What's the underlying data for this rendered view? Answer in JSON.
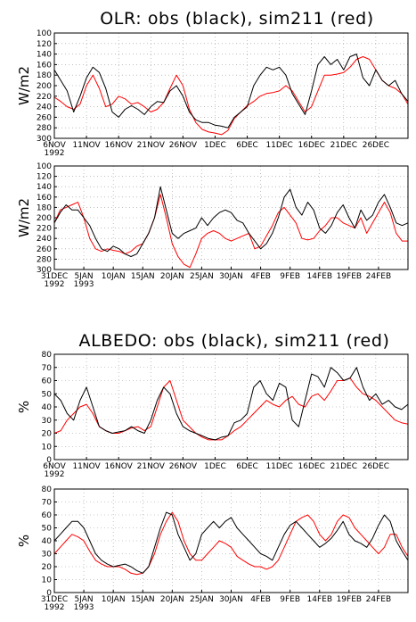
{
  "titles": {
    "olr": "OLR: obs (black), sim211 (red)",
    "albedo": "ALBEDO: obs (black), sim211 (red)"
  },
  "colors": {
    "obs": "#000000",
    "sim": "#ff0000"
  },
  "chart_data": [
    {
      "type": "line",
      "group": "olr",
      "ylabel": "W/m2",
      "yticks": [
        "100",
        "120",
        "140",
        "160",
        "180",
        "200",
        "220",
        "240",
        "260",
        "280",
        "300"
      ],
      "ylim": [
        300,
        100
      ],
      "y_inverted": true,
      "xlim": [
        0,
        55
      ],
      "xticks": [
        {
          "pos": 0,
          "label": "6NOV",
          "sub": "1992"
        },
        {
          "pos": 5,
          "label": "11NOV"
        },
        {
          "pos": 10,
          "label": "16NOV"
        },
        {
          "pos": 15,
          "label": "21NOV"
        },
        {
          "pos": 20,
          "label": "26NOV"
        },
        {
          "pos": 25,
          "label": "1DEC"
        },
        {
          "pos": 30,
          "label": "6DEC"
        },
        {
          "pos": 35,
          "label": "11DEC"
        },
        {
          "pos": 40,
          "label": "16DEC"
        },
        {
          "pos": 45,
          "label": "21DEC"
        },
        {
          "pos": 50,
          "label": "26DEC"
        }
      ],
      "series": [
        {
          "role": "obs",
          "values": [
            170,
            190,
            210,
            250,
            220,
            185,
            165,
            175,
            205,
            250,
            260,
            245,
            238,
            245,
            255,
            240,
            230,
            232,
            210,
            200,
            220,
            250,
            265,
            270,
            270,
            275,
            277,
            280,
            260,
            250,
            240,
            200,
            180,
            165,
            170,
            165,
            180,
            215,
            235,
            255,
            210,
            160,
            145,
            160,
            150,
            170,
            145,
            140,
            185,
            200,
            170,
            190,
            200,
            190,
            215,
            230
          ]
        },
        {
          "role": "sim",
          "values": [
            222,
            230,
            240,
            245,
            235,
            200,
            180,
            205,
            240,
            235,
            220,
            225,
            235,
            232,
            240,
            250,
            245,
            232,
            205,
            180,
            200,
            245,
            270,
            283,
            288,
            290,
            293,
            285,
            262,
            250,
            238,
            230,
            220,
            215,
            213,
            210,
            200,
            210,
            230,
            250,
            240,
            210,
            180,
            180,
            178,
            175,
            165,
            150,
            145,
            150,
            170,
            190,
            200,
            205,
            215,
            235
          ]
        }
      ]
    },
    {
      "type": "line",
      "group": "olr",
      "ylabel": "W/m2",
      "yticks": [
        "100",
        "120",
        "140",
        "160",
        "180",
        "200",
        "220",
        "240",
        "260",
        "280",
        "300"
      ],
      "ylim": [
        300,
        100
      ],
      "y_inverted": true,
      "xlim": [
        0,
        60
      ],
      "xticks": [
        {
          "pos": 0,
          "label": "31DEC",
          "sub": "1992"
        },
        {
          "pos": 5,
          "label": "5JAN",
          "sub": "1993"
        },
        {
          "pos": 10,
          "label": "10JAN"
        },
        {
          "pos": 15,
          "label": "15JAN"
        },
        {
          "pos": 20,
          "label": "20JAN"
        },
        {
          "pos": 25,
          "label": "25JAN"
        },
        {
          "pos": 30,
          "label": "30JAN"
        },
        {
          "pos": 35,
          "label": "4FEB"
        },
        {
          "pos": 40,
          "label": "9FEB"
        },
        {
          "pos": 45,
          "label": "14FEB"
        },
        {
          "pos": 50,
          "label": "19FEB"
        },
        {
          "pos": 55,
          "label": "24FEB"
        }
      ],
      "series": [
        {
          "role": "obs",
          "values": [
            210,
            190,
            175,
            185,
            185,
            200,
            215,
            240,
            260,
            265,
            255,
            260,
            270,
            275,
            270,
            250,
            230,
            200,
            140,
            185,
            230,
            240,
            230,
            225,
            220,
            200,
            215,
            200,
            190,
            185,
            190,
            205,
            210,
            230,
            245,
            260,
            250,
            230,
            200,
            160,
            145,
            180,
            195,
            170,
            185,
            220,
            230,
            215,
            190,
            175,
            200,
            220,
            185,
            205,
            195,
            170,
            155,
            180,
            210,
            215,
            210
          ]
        },
        {
          "role": "sim",
          "values": [
            210,
            185,
            180,
            175,
            170,
            200,
            240,
            260,
            265,
            260,
            263,
            265,
            270,
            265,
            255,
            250,
            230,
            200,
            155,
            200,
            250,
            275,
            290,
            296,
            270,
            240,
            230,
            225,
            230,
            240,
            245,
            240,
            235,
            230,
            260,
            255,
            235,
            215,
            190,
            180,
            195,
            210,
            240,
            243,
            240,
            225,
            215,
            200,
            200,
            210,
            215,
            220,
            200,
            230,
            210,
            190,
            170,
            190,
            230,
            245,
            245
          ]
        }
      ]
    },
    {
      "type": "line",
      "group": "albedo",
      "ylabel": "%",
      "yticks": [
        "0",
        "10",
        "20",
        "30",
        "40",
        "50",
        "60",
        "70",
        "80"
      ],
      "ylim": [
        0,
        80
      ],
      "xlim": [
        0,
        55
      ],
      "xticks": [
        {
          "pos": 0,
          "label": "6NOV",
          "sub": "1992"
        },
        {
          "pos": 5,
          "label": "11NOV"
        },
        {
          "pos": 10,
          "label": "16NOV"
        },
        {
          "pos": 15,
          "label": "21NOV"
        },
        {
          "pos": 20,
          "label": "26NOV"
        },
        {
          "pos": 25,
          "label": "1DEC"
        },
        {
          "pos": 30,
          "label": "6DEC"
        },
        {
          "pos": 35,
          "label": "11DEC"
        },
        {
          "pos": 40,
          "label": "16DEC"
        },
        {
          "pos": 45,
          "label": "21DEC"
        },
        {
          "pos": 50,
          "label": "26DEC"
        }
      ],
      "series": [
        {
          "role": "obs",
          "values": [
            50,
            45,
            35,
            30,
            45,
            55,
            40,
            25,
            22,
            20,
            21,
            22,
            25,
            22,
            20,
            30,
            45,
            55,
            50,
            35,
            25,
            22,
            20,
            18,
            16,
            15,
            17,
            18,
            28,
            30,
            35,
            55,
            60,
            50,
            45,
            58,
            55,
            30,
            25,
            45,
            65,
            63,
            55,
            70,
            66,
            60,
            62,
            70,
            55,
            45,
            50,
            42,
            45,
            40,
            38,
            42
          ]
        },
        {
          "role": "sim",
          "values": [
            20,
            22,
            30,
            35,
            40,
            42,
            35,
            25,
            22,
            20,
            20,
            22,
            24,
            25,
            22,
            25,
            40,
            55,
            60,
            45,
            30,
            25,
            20,
            17,
            15,
            15,
            15,
            18,
            22,
            25,
            30,
            35,
            40,
            45,
            42,
            40,
            45,
            48,
            42,
            40,
            48,
            50,
            45,
            52,
            60,
            60,
            62,
            55,
            50,
            48,
            45,
            40,
            35,
            30,
            28,
            27
          ]
        }
      ]
    },
    {
      "type": "line",
      "group": "albedo",
      "ylabel": "%",
      "yticks": [
        "0",
        "10",
        "20",
        "30",
        "40",
        "50",
        "60",
        "70",
        "80"
      ],
      "ylim": [
        0,
        80
      ],
      "xlim": [
        0,
        60
      ],
      "xticks": [
        {
          "pos": 0,
          "label": "31DEC",
          "sub": "1992"
        },
        {
          "pos": 5,
          "label": "5JAN",
          "sub": "1993"
        },
        {
          "pos": 10,
          "label": "10JAN"
        },
        {
          "pos": 15,
          "label": "15JAN"
        },
        {
          "pos": 20,
          "label": "20JAN"
        },
        {
          "pos": 25,
          "label": "25JAN"
        },
        {
          "pos": 30,
          "label": "30JAN"
        },
        {
          "pos": 35,
          "label": "4FEB"
        },
        {
          "pos": 40,
          "label": "9FEB"
        },
        {
          "pos": 45,
          "label": "14FEB"
        },
        {
          "pos": 50,
          "label": "19FEB"
        },
        {
          "pos": 55,
          "label": "24FEB"
        }
      ],
      "series": [
        {
          "role": "obs",
          "values": [
            40,
            45,
            50,
            55,
            55,
            50,
            40,
            30,
            25,
            22,
            20,
            21,
            22,
            20,
            17,
            15,
            20,
            35,
            50,
            62,
            60,
            45,
            35,
            25,
            30,
            45,
            50,
            55,
            50,
            55,
            58,
            50,
            45,
            40,
            35,
            30,
            28,
            25,
            35,
            45,
            52,
            55,
            50,
            45,
            40,
            35,
            38,
            42,
            48,
            55,
            45,
            40,
            38,
            35,
            42,
            52,
            60,
            55,
            40,
            32,
            25
          ]
        },
        {
          "role": "sim",
          "values": [
            30,
            35,
            40,
            45,
            43,
            40,
            32,
            25,
            22,
            20,
            20,
            20,
            18,
            15,
            14,
            15,
            20,
            30,
            45,
            55,
            62,
            55,
            40,
            30,
            25,
            25,
            30,
            35,
            40,
            38,
            35,
            28,
            25,
            22,
            20,
            20,
            18,
            20,
            25,
            35,
            45,
            55,
            58,
            60,
            55,
            45,
            40,
            45,
            55,
            60,
            58,
            50,
            45,
            40,
            35,
            30,
            35,
            45,
            45,
            35,
            28
          ]
        }
      ]
    }
  ]
}
